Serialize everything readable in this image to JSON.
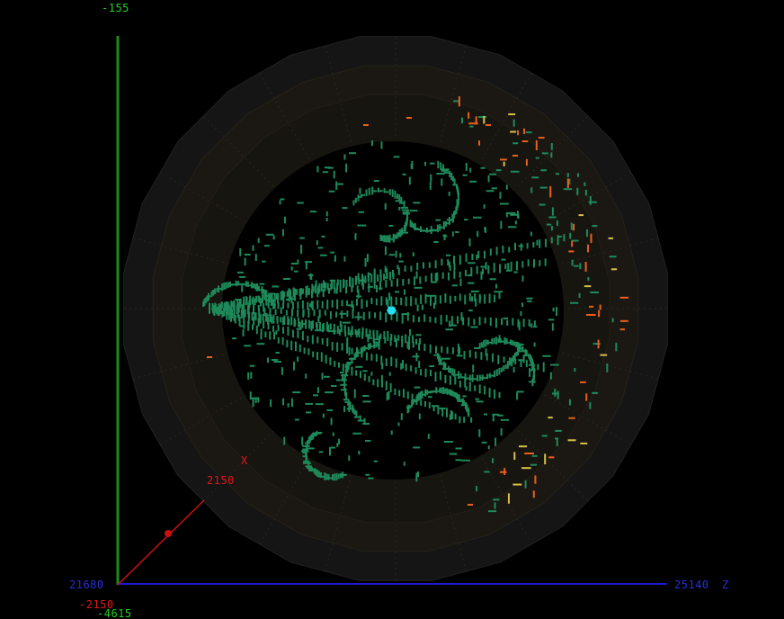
{
  "axes": {
    "y_top_label": "-155",
    "y_bottom_label": "-4615",
    "x_label_near": "2150",
    "x_label_far": "-2150",
    "x_axis_name": "X",
    "z_label_left": "21680",
    "z_label_right": "25140",
    "z_axis_name": "Z"
  },
  "colors": {
    "background": "#000000",
    "y_axis": "#1a8c1a",
    "x_axis": "#cc1010",
    "z_axis": "#1a1ad0",
    "hits": "#1e8a5a",
    "calo_hits": "#e8601c",
    "calo_hits_alt": "#d8c048",
    "vertex": "#22e0f0",
    "detector_ring": "#1a1812"
  },
  "icons": {
    "vertex": "hexagon-icon"
  }
}
